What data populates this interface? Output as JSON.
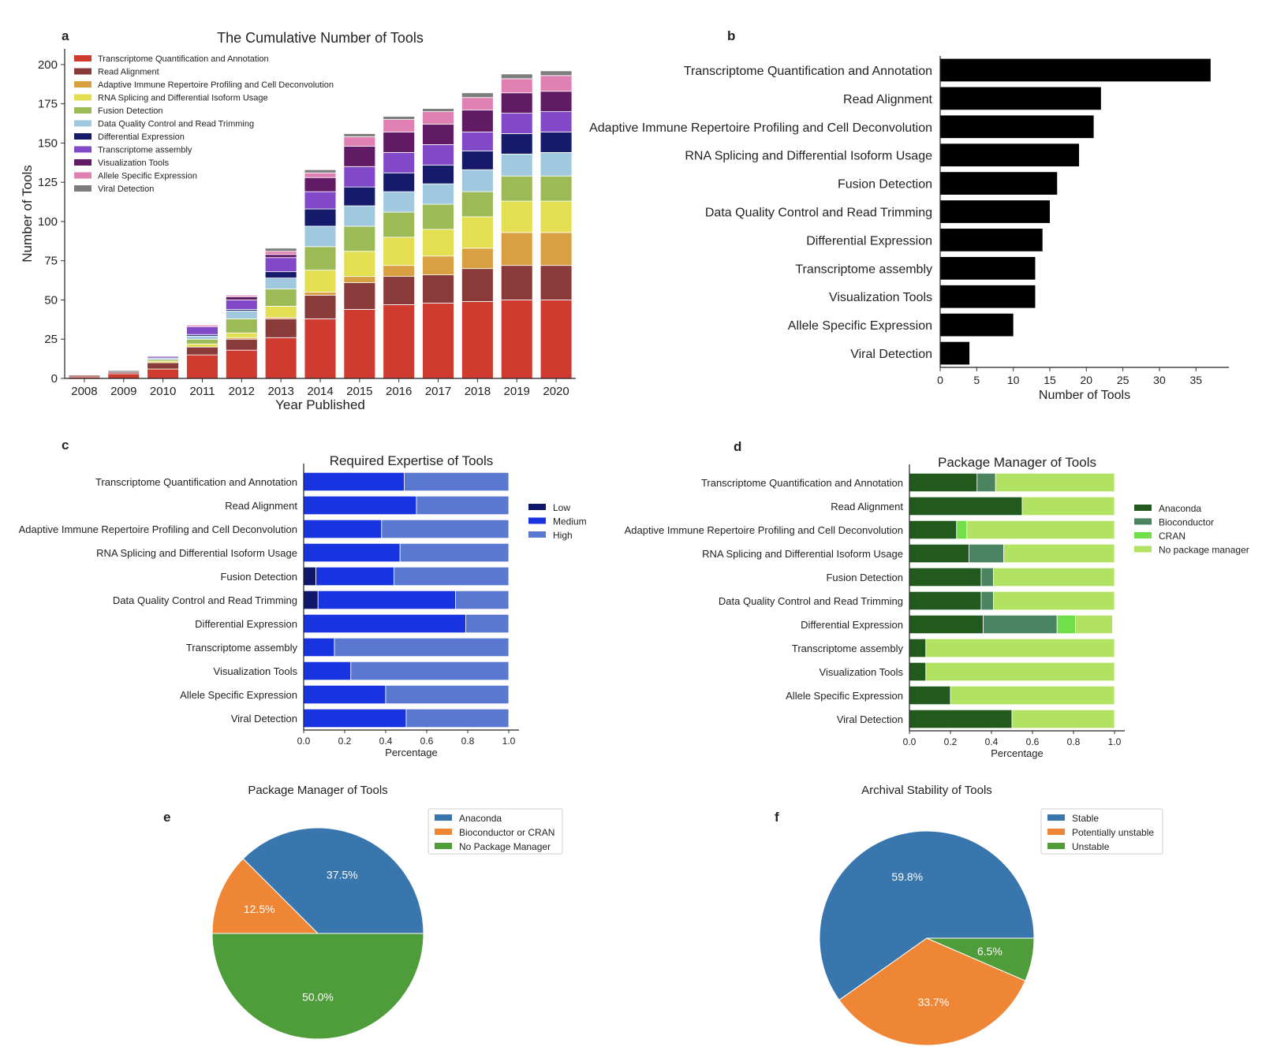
{
  "panel_labels": [
    "a",
    "b",
    "c",
    "d",
    "e",
    "f"
  ],
  "chart_data": [
    {
      "panel": "a",
      "type": "bar",
      "stacked": true,
      "title": "The Cumulative Number of Tools",
      "xlabel": "Year Published",
      "ylabel": "Number of Tools",
      "ylim": [
        0,
        210
      ],
      "yticks": [
        0,
        25,
        50,
        75,
        100,
        125,
        150,
        175,
        200
      ],
      "categories": [
        "2008",
        "2009",
        "2010",
        "2011",
        "2012",
        "2013",
        "2014",
        "2015",
        "2016",
        "2017",
        "2018",
        "2019",
        "2020"
      ],
      "legend_position": "top-left",
      "series": [
        {
          "name": "Transcriptome Quantification and Annotation",
          "color": "#d03b2f",
          "values": [
            1,
            3,
            6,
            15,
            18,
            26,
            38,
            44,
            47,
            48,
            49,
            50,
            50
          ]
        },
        {
          "name": "Read Alignment",
          "color": "#8b3a3a",
          "values": [
            1,
            1,
            4,
            5,
            7,
            12,
            15,
            17,
            18,
            18,
            21,
            22,
            22
          ]
        },
        {
          "name": "Adaptive Immune Repertoire Profiling and Cell Deconvolution",
          "color": "#d8a040",
          "values": [
            0,
            0,
            0,
            0,
            1,
            1,
            2,
            4,
            7,
            12,
            13,
            21,
            21
          ]
        },
        {
          "name": "RNA Splicing and Differential Isoform Usage",
          "color": "#e3df50",
          "values": [
            0,
            0,
            1,
            2,
            3,
            7,
            14,
            16,
            18,
            17,
            20,
            20,
            20
          ]
        },
        {
          "name": "Fusion Detection",
          "color": "#9cba55",
          "values": [
            0,
            0,
            1,
            3,
            9,
            11,
            15,
            16,
            16,
            16,
            16,
            16,
            16
          ]
        },
        {
          "name": "Data Quality Control and Read Trimming",
          "color": "#a0c9e0",
          "values": [
            0,
            0,
            1,
            2,
            5,
            7,
            13,
            13,
            13,
            13,
            14,
            14,
            15
          ]
        },
        {
          "name": "Differential Expression",
          "color": "#151a6b",
          "values": [
            0,
            0,
            0,
            1,
            1,
            4,
            11,
            12,
            12,
            12,
            12,
            13,
            13
          ]
        },
        {
          "name": "Transcriptome assembly",
          "color": "#8148c8",
          "values": [
            0,
            0,
            1,
            5,
            6,
            9,
            11,
            13,
            13,
            13,
            12,
            13,
            13
          ]
        },
        {
          "name": "Visualization Tools",
          "color": "#611b64",
          "values": [
            0,
            0,
            0,
            0,
            2,
            2,
            9,
            13,
            13,
            13,
            14,
            13,
            13
          ]
        },
        {
          "name": "Allele Specific Expression",
          "color": "#e181b3",
          "values": [
            0,
            0,
            0,
            1,
            1,
            2,
            3,
            6,
            8,
            8,
            8,
            9,
            10
          ]
        },
        {
          "name": "Viral Detection",
          "color": "#7d7d7d",
          "values": [
            0,
            1,
            0,
            0,
            0,
            2,
            2,
            2,
            2,
            2,
            3,
            3,
            3
          ]
        }
      ]
    },
    {
      "panel": "b",
      "type": "bar",
      "orientation": "horizontal",
      "xlabel": "Number of Tools",
      "xlim": [
        0,
        39.5
      ],
      "xticks": [
        0,
        5,
        10,
        15,
        20,
        25,
        30,
        35
      ],
      "color": "#000000",
      "categories": [
        "Transcriptome Quantification and Annotation",
        "Read Alignment",
        "Adaptive Immune Repertoire Profiling and Cell Deconvolution",
        "RNA Splicing and Differential Isoform Usage",
        "Fusion Detection",
        "Data Quality Control and Read Trimming",
        "Differential Expression",
        "Transcriptome assembly",
        "Visualization Tools",
        "Allele Specific Expression",
        "Viral Detection"
      ],
      "values": [
        37,
        22,
        21,
        19,
        16,
        15,
        14,
        13,
        13,
        10,
        4
      ]
    },
    {
      "panel": "c",
      "type": "bar",
      "orientation": "horizontal",
      "stacked": true,
      "title": "Required Expertise of Tools",
      "xlabel": "Percentage",
      "xlim": [
        0,
        1.05
      ],
      "xticks": [
        "0.0",
        "0.2",
        "0.4",
        "0.6",
        "0.8",
        "1.0"
      ],
      "legend_position": "right",
      "categories": [
        "Transcriptome Quantification and Annotation",
        "Read Alignment",
        "Adaptive Immune Repertoire Profiling and Cell Deconvolution",
        "RNA Splicing and Differential Isoform Usage",
        "Fusion Detection",
        "Data Quality Control and Read Trimming",
        "Differential Expression",
        "Transcriptome assembly",
        "Visualization Tools",
        "Allele Specific Expression",
        "Viral Detection"
      ],
      "series": [
        {
          "name": "Low",
          "color": "#10166a",
          "values": [
            0,
            0,
            0,
            0,
            0.06,
            0.07,
            0,
            0,
            0,
            0,
            0
          ]
        },
        {
          "name": "Medium",
          "color": "#1834e0",
          "values": [
            0.49,
            0.55,
            0.38,
            0.47,
            0.38,
            0.67,
            0.79,
            0.15,
            0.23,
            0.4,
            0.5
          ]
        },
        {
          "name": "High",
          "color": "#5a78cf",
          "values": [
            0.51,
            0.45,
            0.62,
            0.53,
            0.56,
            0.26,
            0.21,
            0.85,
            0.77,
            0.6,
            0.5
          ]
        }
      ]
    },
    {
      "panel": "d",
      "type": "bar",
      "orientation": "horizontal",
      "stacked": true,
      "title": "Package Manager of Tools",
      "xlabel": "Percentage",
      "xlim": [
        0,
        1.05
      ],
      "xticks": [
        "0.0",
        "0.2",
        "0.4",
        "0.6",
        "0.8",
        "1.0"
      ],
      "legend_position": "right",
      "categories": [
        "Transcriptome Quantification and Annotation",
        "Read Alignment",
        "Adaptive Immune Repertoire Profiling and Cell Deconvolution",
        "RNA Splicing and Differential Isoform Usage",
        "Fusion Detection",
        "Data Quality Control and Read Trimming",
        "Differential Expression",
        "Transcriptome assembly",
        "Visualization Tools",
        "Allele Specific Expression",
        "Viral Detection"
      ],
      "series": [
        {
          "name": "Anaconda",
          "color": "#225a1e",
          "values": [
            0.33,
            0.55,
            0.23,
            0.29,
            0.35,
            0.35,
            0.36,
            0.08,
            0.08,
            0.2,
            0.5
          ]
        },
        {
          "name": "Bioconductor",
          "color": "#4a8460",
          "values": [
            0.09,
            0,
            0,
            0.17,
            0.06,
            0.06,
            0.36,
            0,
            0,
            0,
            0
          ]
        },
        {
          "name": "CRAN",
          "color": "#6fe048",
          "values": [
            0,
            0,
            0.05,
            0,
            0,
            0,
            0.09,
            0,
            0,
            0,
            0
          ]
        },
        {
          "name": "No package manager",
          "color": "#b2e262",
          "values": [
            0.58,
            0.45,
            0.72,
            0.54,
            0.59,
            0.59,
            0.18,
            0.92,
            0.92,
            0.8,
            0.5
          ]
        }
      ]
    },
    {
      "panel": "e",
      "type": "pie",
      "title": "Package Manager of Tools",
      "legend_position": "top-right",
      "slices": [
        {
          "name": "Anaconda",
          "value": 37.5,
          "label": "37.5%",
          "color": "#3a76ae"
        },
        {
          "name": "Bioconductor or CRAN",
          "value": 12.5,
          "label": "12.5%",
          "color": "#ef8636"
        },
        {
          "name": "No Package Manager",
          "value": 50.0,
          "label": "50.0%",
          "color": "#4e9c3a"
        }
      ]
    },
    {
      "panel": "f",
      "type": "pie",
      "title": "Archival Stability of Tools",
      "legend_position": "top-right",
      "slices": [
        {
          "name": "Stable",
          "value": 59.8,
          "label": "59.8%",
          "color": "#3a76ae"
        },
        {
          "name": "Potentially unstable",
          "value": 33.7,
          "label": "33.7%",
          "color": "#ef8636"
        },
        {
          "name": "Unstable",
          "value": 6.5,
          "label": "6.5%",
          "color": "#4e9c3a"
        }
      ]
    }
  ]
}
